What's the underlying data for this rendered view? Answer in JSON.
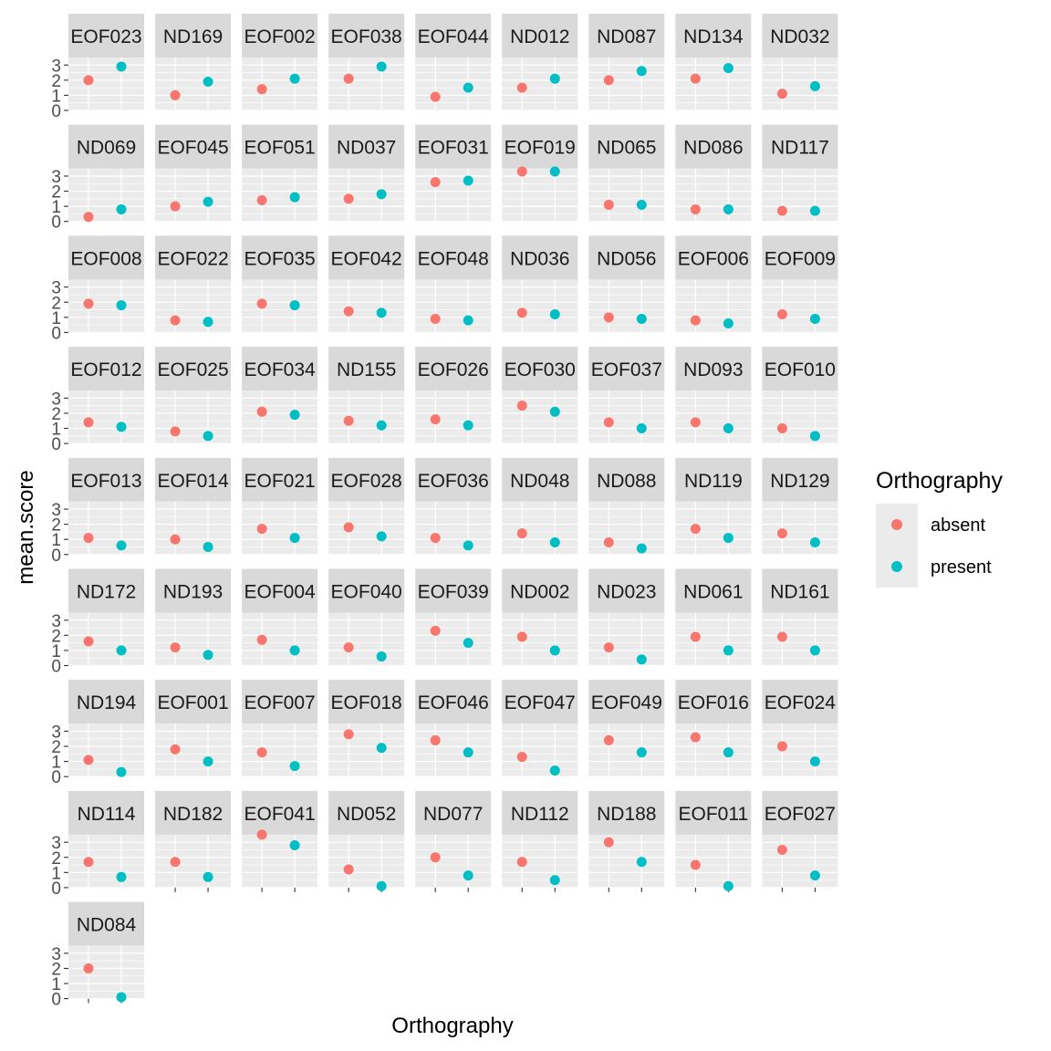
{
  "chart_data": {
    "type": "scatter",
    "facet_layout": "wrap",
    "xlabel": "Orthography",
    "ylabel": "mean.score",
    "x_categories": [
      "absent",
      "present"
    ],
    "ylim": [
      0,
      3.5
    ],
    "y_ticks": [
      0,
      1,
      2,
      3
    ],
    "legend": {
      "title": "Orthography",
      "position": "right",
      "items": [
        {
          "label": "absent",
          "color": "#F8766D"
        },
        {
          "label": "present",
          "color": "#00BFC4"
        }
      ]
    },
    "colors": {
      "panel_bg": "#EBEBEB",
      "strip_bg": "#D9D9D9",
      "grid": "#FFFFFF"
    },
    "panels": [
      {
        "label": "EOF023",
        "absent": 2.0,
        "present": 2.9
      },
      {
        "label": "ND169",
        "absent": 1.0,
        "present": 1.9
      },
      {
        "label": "EOF002",
        "absent": 1.4,
        "present": 2.1
      },
      {
        "label": "EOF038",
        "absent": 2.1,
        "present": 2.9
      },
      {
        "label": "EOF044",
        "absent": 0.9,
        "present": 1.5
      },
      {
        "label": "ND012",
        "absent": 1.5,
        "present": 2.1
      },
      {
        "label": "ND087",
        "absent": 2.0,
        "present": 2.6
      },
      {
        "label": "ND134",
        "absent": 2.1,
        "present": 2.8
      },
      {
        "label": "ND032",
        "absent": 1.1,
        "present": 1.6
      },
      {
        "label": "ND069",
        "absent": 0.3,
        "present": 0.8
      },
      {
        "label": "EOF045",
        "absent": 1.0,
        "present": 1.3
      },
      {
        "label": "EOF051",
        "absent": 1.4,
        "present": 1.6
      },
      {
        "label": "ND037",
        "absent": 1.5,
        "present": 1.8
      },
      {
        "label": "EOF031",
        "absent": 2.6,
        "present": 2.7
      },
      {
        "label": "EOF019",
        "absent": 3.3,
        "present": 3.3
      },
      {
        "label": "ND065",
        "absent": 1.1,
        "present": 1.1
      },
      {
        "label": "ND086",
        "absent": 0.8,
        "present": 0.8
      },
      {
        "label": "ND117",
        "absent": 0.7,
        "present": 0.7
      },
      {
        "label": "EOF008",
        "absent": 1.9,
        "present": 1.8
      },
      {
        "label": "EOF022",
        "absent": 0.8,
        "present": 0.7
      },
      {
        "label": "EOF035",
        "absent": 1.9,
        "present": 1.8
      },
      {
        "label": "EOF042",
        "absent": 1.4,
        "present": 1.3
      },
      {
        "label": "EOF048",
        "absent": 0.9,
        "present": 0.8
      },
      {
        "label": "ND036",
        "absent": 1.3,
        "present": 1.2
      },
      {
        "label": "ND056",
        "absent": 1.0,
        "present": 0.9
      },
      {
        "label": "EOF006",
        "absent": 0.8,
        "present": 0.6
      },
      {
        "label": "EOF009",
        "absent": 1.2,
        "present": 0.9
      },
      {
        "label": "EOF012",
        "absent": 1.4,
        "present": 1.1
      },
      {
        "label": "EOF025",
        "absent": 0.8,
        "present": 0.5
      },
      {
        "label": "EOF034",
        "absent": 2.1,
        "present": 1.9
      },
      {
        "label": "ND155",
        "absent": 1.5,
        "present": 1.2
      },
      {
        "label": "EOF026",
        "absent": 1.6,
        "present": 1.2
      },
      {
        "label": "EOF030",
        "absent": 2.5,
        "present": 2.1
      },
      {
        "label": "EOF037",
        "absent": 1.4,
        "present": 1.0
      },
      {
        "label": "ND093",
        "absent": 1.4,
        "present": 1.0
      },
      {
        "label": "EOF010",
        "absent": 1.0,
        "present": 0.5
      },
      {
        "label": "EOF013",
        "absent": 1.1,
        "present": 0.6
      },
      {
        "label": "EOF014",
        "absent": 1.0,
        "present": 0.5
      },
      {
        "label": "EOF021",
        "absent": 1.7,
        "present": 1.1
      },
      {
        "label": "EOF028",
        "absent": 1.8,
        "present": 1.2
      },
      {
        "label": "EOF036",
        "absent": 1.1,
        "present": 0.6
      },
      {
        "label": "ND048",
        "absent": 1.4,
        "present": 0.8
      },
      {
        "label": "ND088",
        "absent": 0.8,
        "present": 0.4
      },
      {
        "label": "ND119",
        "absent": 1.7,
        "present": 1.1
      },
      {
        "label": "ND129",
        "absent": 1.4,
        "present": 0.8
      },
      {
        "label": "ND172",
        "absent": 1.6,
        "present": 1.0
      },
      {
        "label": "ND193",
        "absent": 1.2,
        "present": 0.7
      },
      {
        "label": "EOF004",
        "absent": 1.7,
        "present": 1.0
      },
      {
        "label": "EOF040",
        "absent": 1.2,
        "present": 0.6
      },
      {
        "label": "EOF039",
        "absent": 2.3,
        "present": 1.5
      },
      {
        "label": "ND002",
        "absent": 1.9,
        "present": 1.0
      },
      {
        "label": "ND023",
        "absent": 1.2,
        "present": 0.4
      },
      {
        "label": "ND061",
        "absent": 1.9,
        "present": 1.0
      },
      {
        "label": "ND161",
        "absent": 1.9,
        "present": 1.0
      },
      {
        "label": "ND194",
        "absent": 1.1,
        "present": 0.3
      },
      {
        "label": "EOF001",
        "absent": 1.8,
        "present": 1.0
      },
      {
        "label": "EOF007",
        "absent": 1.6,
        "present": 0.7
      },
      {
        "label": "EOF018",
        "absent": 2.8,
        "present": 1.9
      },
      {
        "label": "EOF046",
        "absent": 2.4,
        "present": 1.6
      },
      {
        "label": "EOF047",
        "absent": 1.3,
        "present": 0.4
      },
      {
        "label": "EOF049",
        "absent": 2.4,
        "present": 1.6
      },
      {
        "label": "EOF016",
        "absent": 2.6,
        "present": 1.6
      },
      {
        "label": "EOF024",
        "absent": 2.0,
        "present": 1.0
      },
      {
        "label": "ND114",
        "absent": 1.7,
        "present": 0.7
      },
      {
        "label": "ND182",
        "absent": 1.7,
        "present": 0.7
      },
      {
        "label": "EOF041",
        "absent": 3.5,
        "present": 2.8
      },
      {
        "label": "ND052",
        "absent": 1.2,
        "present": 0.1
      },
      {
        "label": "ND077",
        "absent": 2.0,
        "present": 0.8
      },
      {
        "label": "ND112",
        "absent": 1.7,
        "present": 0.5
      },
      {
        "label": "ND188",
        "absent": 3.0,
        "present": 1.7
      },
      {
        "label": "EOF011",
        "absent": 1.5,
        "present": 0.1
      },
      {
        "label": "EOF027",
        "absent": 2.5,
        "present": 0.8
      },
      {
        "label": "ND084",
        "absent": 2.0,
        "present": 0.1
      }
    ]
  }
}
